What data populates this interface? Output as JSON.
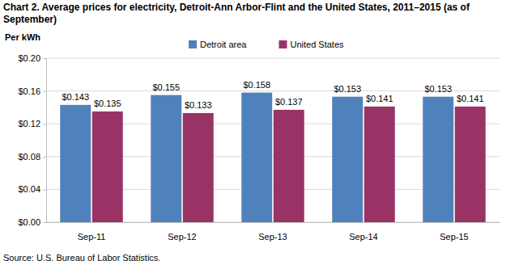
{
  "chart_data": {
    "type": "bar",
    "title": "Chart 2. Average prices for electricity, Detroit-Ann Arbor-Flint and the United States, 2011–2015 (as of September)",
    "y_label": "Per kWh",
    "source": "Source: U.S. Bureau of Labor Statistics.",
    "categories": [
      "Sep-11",
      "Sep-12",
      "Sep-13",
      "Sep-14",
      "Sep-15"
    ],
    "series": [
      {
        "name": "Detroit area",
        "color": "#4f81bd",
        "values": [
          0.143,
          0.155,
          0.158,
          0.153,
          0.153
        ],
        "value_labels": [
          "$0.143",
          "$0.155",
          "$0.158",
          "$0.153",
          "$0.153"
        ]
      },
      {
        "name": "United States",
        "color": "#993366",
        "values": [
          0.135,
          0.133,
          0.137,
          0.141,
          0.141
        ],
        "value_labels": [
          "$0.135",
          "$0.133",
          "$0.137",
          "$0.141",
          "$0.141"
        ]
      }
    ],
    "ylim": [
      0,
      0.2
    ],
    "yticks": [
      {
        "value": 0,
        "label": "$0.00"
      },
      {
        "value": 0.04,
        "label": "$0.04"
      },
      {
        "value": 0.08,
        "label": "$0.08"
      },
      {
        "value": 0.12,
        "label": "$0.12"
      },
      {
        "value": 0.16,
        "label": "$0.16"
      },
      {
        "value": 0.2,
        "label": "$0.20"
      }
    ],
    "grid": true,
    "legend": "top",
    "data_labels": true
  }
}
